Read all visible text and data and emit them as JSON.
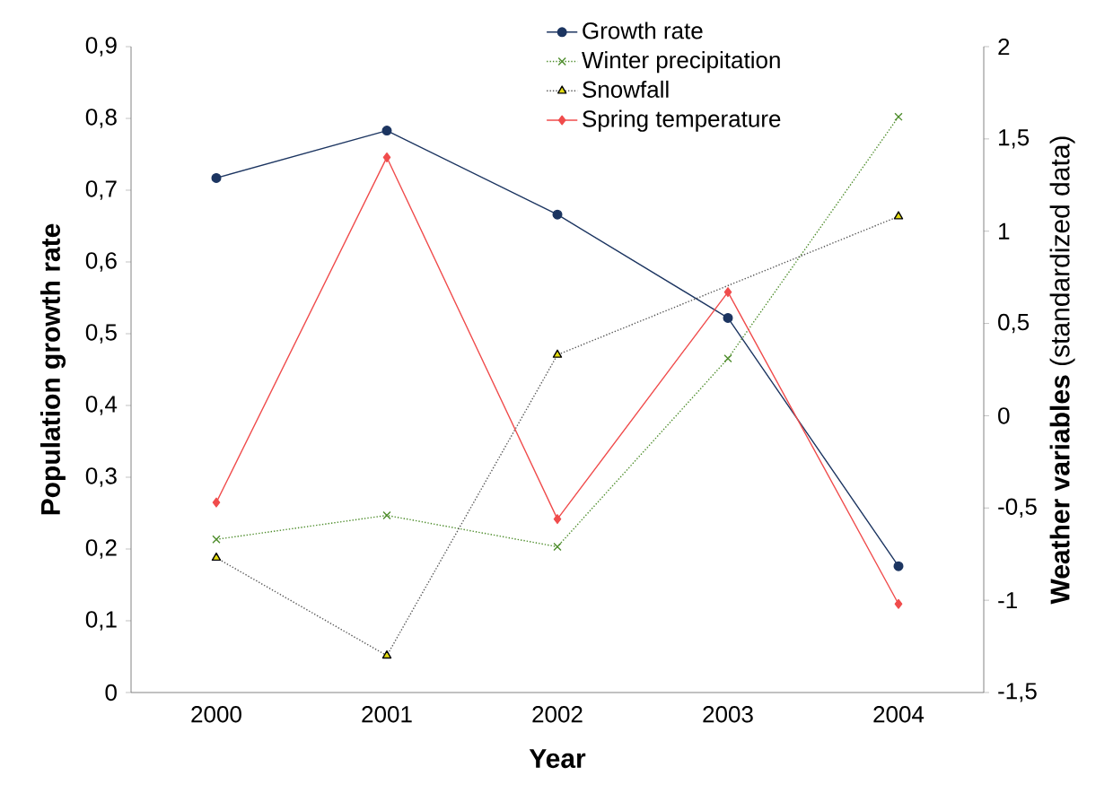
{
  "chart_data": {
    "type": "line",
    "xlabel": "Year",
    "ylabel": "Population growth rate",
    "y2label": "**Weather variables** (standardized data)",
    "categories": [
      "2000",
      "2001",
      "2002",
      "2003",
      "2004"
    ],
    "ylim": [
      0,
      0.9
    ],
    "yticks": [
      0,
      {
        "value": 0.1,
        "label": "0,1"
      },
      {
        "value": 0.2,
        "label": "0,2"
      },
      {
        "value": 0.3,
        "label": "0,3"
      },
      {
        "value": 0.4,
        "label": "0,4"
      },
      {
        "value": 0.5,
        "label": "0,5"
      },
      {
        "value": 0.6,
        "label": "0,6"
      },
      {
        "value": 0.7,
        "label": "0,7"
      },
      {
        "value": 0.8,
        "label": "0,8"
      },
      {
        "value": 0.9,
        "label": "0,9"
      }
    ],
    "y2lim": [
      -1.5,
      2
    ],
    "y2ticks": [
      {
        "value": -1.5,
        "label": "-1,5"
      },
      -1,
      {
        "value": -0.5,
        "label": "-0,5"
      },
      0,
      {
        "value": 0.5,
        "label": "0,5"
      },
      1,
      {
        "value": 1.5,
        "label": "1,5"
      },
      2
    ],
    "grid": false,
    "legend": "top",
    "series": [
      {
        "name": "Growth rate",
        "color": "#1c3561",
        "marker": "circle",
        "line_style": "solid",
        "values": [
          0.717,
          0.783,
          0.666,
          0.522,
          0.176
        ]
      },
      {
        "name": "Winter precipitation",
        "color": "#4e8d2c",
        "marker": "cross",
        "line_style": "dotted",
        "axis": "y2",
        "values": [
          -0.67,
          -0.54,
          -0.71,
          0.31,
          1.62
        ]
      },
      {
        "name": "Snowfall",
        "color": "#e4dc10",
        "marker": "triangle",
        "line_style": "dotted",
        "axis": "y2",
        "values": [
          -0.77,
          -1.3,
          0.33,
          null,
          1.08
        ]
      },
      {
        "name": "Spring temperature",
        "color": "#f04c4c",
        "marker": "diamond",
        "line_style": "solid",
        "axis": "y2",
        "values": [
          -0.47,
          1.4,
          -0.56,
          0.67,
          -1.02
        ]
      }
    ]
  }
}
